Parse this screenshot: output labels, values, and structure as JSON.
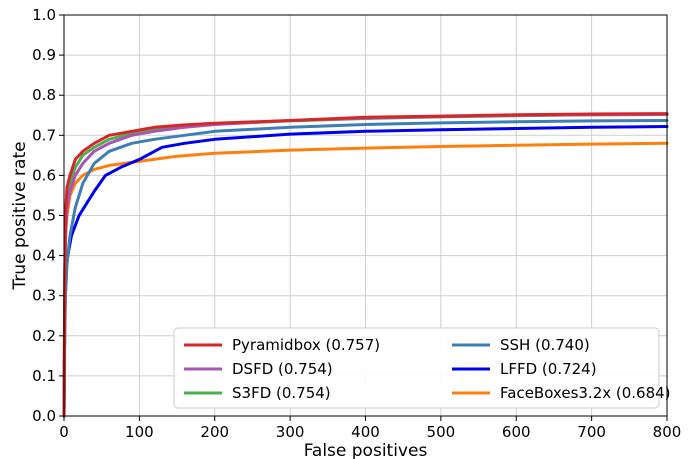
{
  "chart_data": {
    "type": "line",
    "title": "",
    "xlabel": "False positives",
    "ylabel": "True positive rate",
    "xlim": [
      0,
      800
    ],
    "ylim": [
      0.0,
      1.0
    ],
    "x_ticks": [
      "0",
      "100",
      "200",
      "300",
      "400",
      "500",
      "600",
      "700",
      "800"
    ],
    "y_ticks": [
      "0.0",
      "0.1",
      "0.2",
      "0.3",
      "0.4",
      "0.5",
      "0.6",
      "0.7",
      "0.8",
      "0.9",
      "1.0"
    ],
    "grid": true,
    "legend_placement": "bottom-right",
    "series": [
      {
        "name": "Pyramidbox (0.757)",
        "color": "#d62728",
        "points": [
          [
            0,
            0.0
          ],
          [
            1,
            0.35
          ],
          [
            2,
            0.5
          ],
          [
            4,
            0.57
          ],
          [
            8,
            0.6
          ],
          [
            15,
            0.64
          ],
          [
            25,
            0.66
          ],
          [
            40,
            0.68
          ],
          [
            60,
            0.7
          ],
          [
            90,
            0.71
          ],
          [
            120,
            0.72
          ],
          [
            160,
            0.726
          ],
          [
            200,
            0.73
          ],
          [
            300,
            0.737
          ],
          [
            400,
            0.745
          ],
          [
            500,
            0.748
          ],
          [
            600,
            0.751
          ],
          [
            700,
            0.753
          ],
          [
            800,
            0.754
          ]
        ]
      },
      {
        "name": "DSFD (0.754)",
        "color": "#a855b5",
        "points": [
          [
            0,
            0.0
          ],
          [
            1,
            0.3
          ],
          [
            2,
            0.45
          ],
          [
            4,
            0.52
          ],
          [
            8,
            0.56
          ],
          [
            15,
            0.6
          ],
          [
            25,
            0.63
          ],
          [
            40,
            0.66
          ],
          [
            60,
            0.68
          ],
          [
            90,
            0.7
          ],
          [
            120,
            0.71
          ],
          [
            160,
            0.72
          ],
          [
            200,
            0.727
          ],
          [
            300,
            0.737
          ],
          [
            400,
            0.743
          ],
          [
            500,
            0.747
          ],
          [
            600,
            0.75
          ],
          [
            700,
            0.751
          ],
          [
            800,
            0.752
          ]
        ]
      },
      {
        "name": "S3FD (0.754)",
        "color": "#4caf50",
        "points": [
          [
            0,
            0.0
          ],
          [
            1,
            0.3
          ],
          [
            2,
            0.45
          ],
          [
            4,
            0.53
          ],
          [
            8,
            0.58
          ],
          [
            15,
            0.62
          ],
          [
            25,
            0.65
          ],
          [
            40,
            0.67
          ],
          [
            60,
            0.69
          ],
          [
            90,
            0.705
          ],
          [
            120,
            0.715
          ],
          [
            160,
            0.722
          ],
          [
            200,
            0.728
          ],
          [
            300,
            0.736
          ],
          [
            400,
            0.742
          ],
          [
            500,
            0.746
          ],
          [
            600,
            0.749
          ],
          [
            700,
            0.751
          ],
          [
            800,
            0.752
          ]
        ]
      },
      {
        "name": "SSH (0.740)",
        "color": "#3d7fb4",
        "points": [
          [
            0,
            0.0
          ],
          [
            1,
            0.2
          ],
          [
            2,
            0.3
          ],
          [
            4,
            0.38
          ],
          [
            8,
            0.45
          ],
          [
            15,
            0.52
          ],
          [
            25,
            0.58
          ],
          [
            40,
            0.63
          ],
          [
            60,
            0.66
          ],
          [
            90,
            0.68
          ],
          [
            120,
            0.69
          ],
          [
            160,
            0.7
          ],
          [
            200,
            0.71
          ],
          [
            300,
            0.72
          ],
          [
            400,
            0.727
          ],
          [
            500,
            0.731
          ],
          [
            600,
            0.734
          ],
          [
            700,
            0.736
          ],
          [
            800,
            0.737
          ]
        ]
      },
      {
        "name": "LFFD (0.724)",
        "color": "#0000ee",
        "points": [
          [
            0,
            0.0
          ],
          [
            1,
            0.25
          ],
          [
            2,
            0.35
          ],
          [
            5,
            0.4
          ],
          [
            10,
            0.45
          ],
          [
            20,
            0.5
          ],
          [
            30,
            0.53
          ],
          [
            40,
            0.56
          ],
          [
            55,
            0.6
          ],
          [
            75,
            0.62
          ],
          [
            100,
            0.64
          ],
          [
            130,
            0.67
          ],
          [
            160,
            0.68
          ],
          [
            200,
            0.69
          ],
          [
            300,
            0.703
          ],
          [
            400,
            0.71
          ],
          [
            500,
            0.714
          ],
          [
            600,
            0.717
          ],
          [
            700,
            0.72
          ],
          [
            800,
            0.722
          ]
        ]
      },
      {
        "name": "FaceBoxes3.2x (0.684)",
        "color": "#ff7f0e",
        "points": [
          [
            0,
            0.0
          ],
          [
            1,
            0.35
          ],
          [
            2,
            0.45
          ],
          [
            4,
            0.5
          ],
          [
            8,
            0.55
          ],
          [
            15,
            0.58
          ],
          [
            25,
            0.6
          ],
          [
            40,
            0.615
          ],
          [
            60,
            0.625
          ],
          [
            100,
            0.635
          ],
          [
            150,
            0.648
          ],
          [
            200,
            0.655
          ],
          [
            300,
            0.663
          ],
          [
            400,
            0.668
          ],
          [
            500,
            0.672
          ],
          [
            600,
            0.675
          ],
          [
            700,
            0.678
          ],
          [
            800,
            0.68
          ]
        ]
      }
    ]
  }
}
